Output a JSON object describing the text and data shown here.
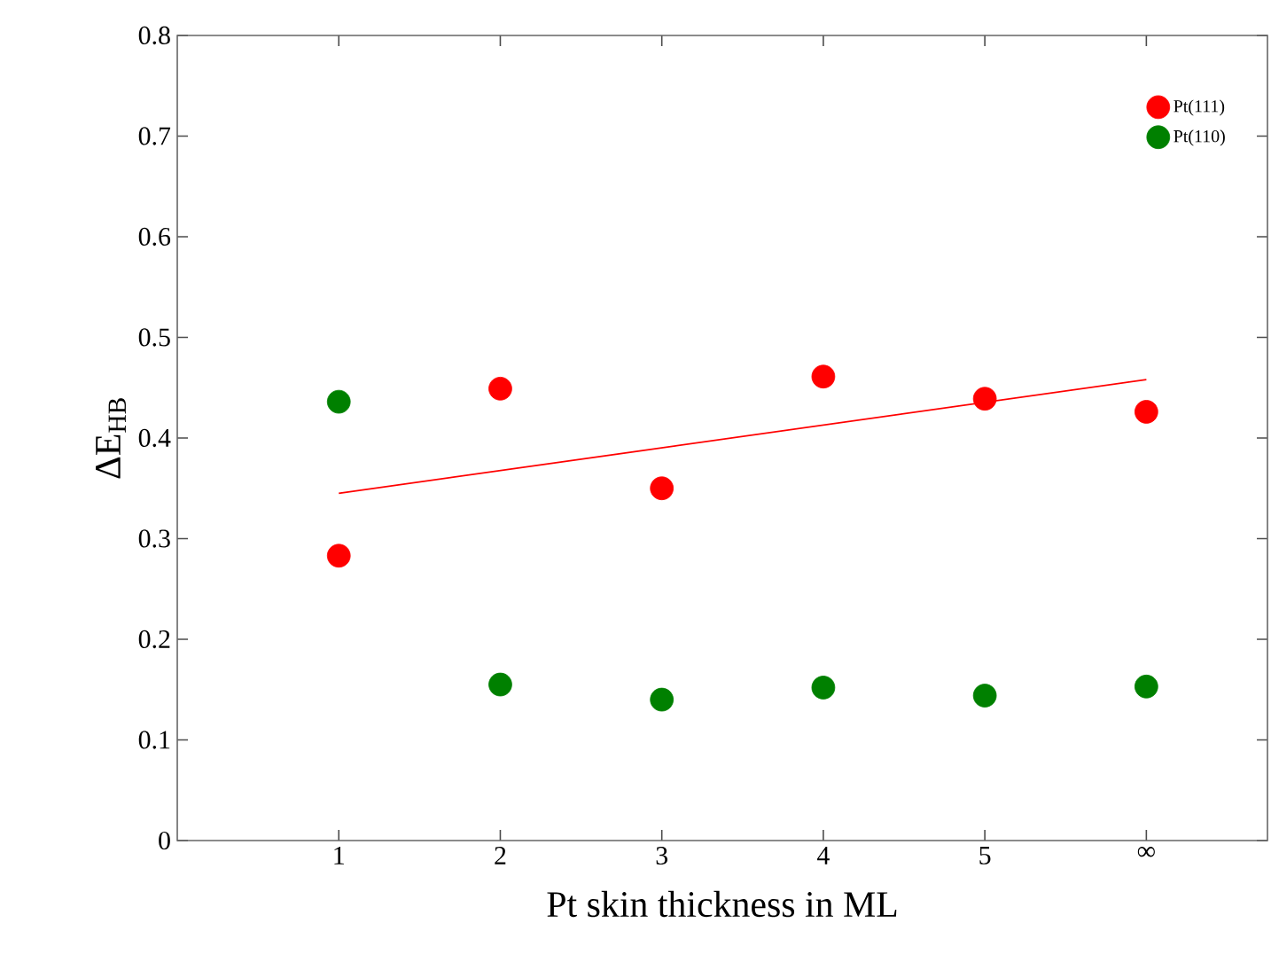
{
  "chart_data": {
    "type": "scatter",
    "xlabel": "Pt skin thickness in ML",
    "ylabel": "ΔE$_{HB}$",
    "x": [
      1,
      2,
      3,
      4,
      5,
      6
    ],
    "xlim": [
      0,
      6.75
    ],
    "xticks": [
      1,
      2,
      3,
      4,
      5,
      {
        "value": 6,
        "label": "∞"
      }
    ],
    "ylim": [
      0,
      0.8
    ],
    "yticks": [
      0,
      0.1,
      0.2,
      0.3,
      0.4,
      0.5,
      0.6,
      0.7,
      0.8
    ],
    "series": [
      {
        "name": "Pt(111)",
        "marker": "circle",
        "color": "#ff0000",
        "values": [
          0.283,
          0.449,
          0.35,
          0.461,
          0.439,
          0.426
        ]
      },
      {
        "name": "Pt(110)",
        "marker": "circle",
        "color": "#008000",
        "values": [
          0.436,
          0.155,
          0.14,
          0.152,
          0.144,
          0.153
        ]
      },
      {
        "type": "line",
        "marker": "none",
        "color": "#ff0000",
        "x": [
          1,
          6
        ],
        "values": [
          0.345,
          0.458
        ]
      }
    ],
    "grid": false,
    "legend": "top right"
  }
}
